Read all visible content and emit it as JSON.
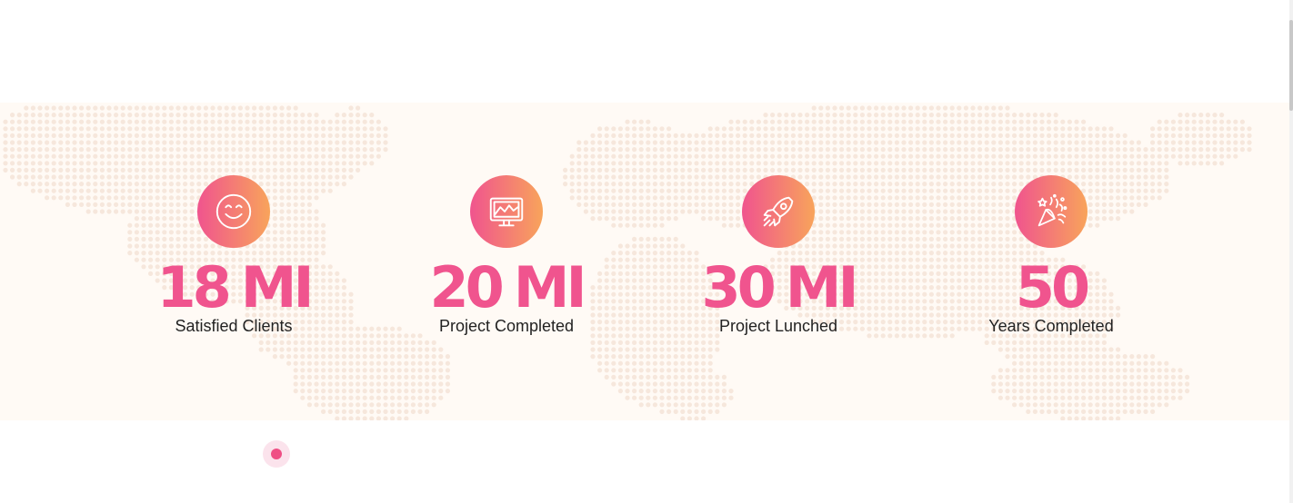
{
  "colors": {
    "accent": "#f0548e",
    "accent_gradient_end": "#f8a45b",
    "band_background": "#fffaf5",
    "map_dot": "#f6e7dc",
    "label_text": "#222222"
  },
  "counters": [
    {
      "icon": "smiley-icon",
      "value": "18",
      "unit": "MI",
      "label": "Satisfied Clients"
    },
    {
      "icon": "monitor-chart-icon",
      "value": "20",
      "unit": "MI",
      "label": "Project Completed"
    },
    {
      "icon": "rocket-icon",
      "value": "30",
      "unit": "MI",
      "label": "Project Lunched"
    },
    {
      "icon": "party-popper-icon",
      "value": "50",
      "unit": "",
      "label": "Years Completed"
    }
  ],
  "pagination": {
    "active_dot": 1,
    "total_dots": 1
  }
}
